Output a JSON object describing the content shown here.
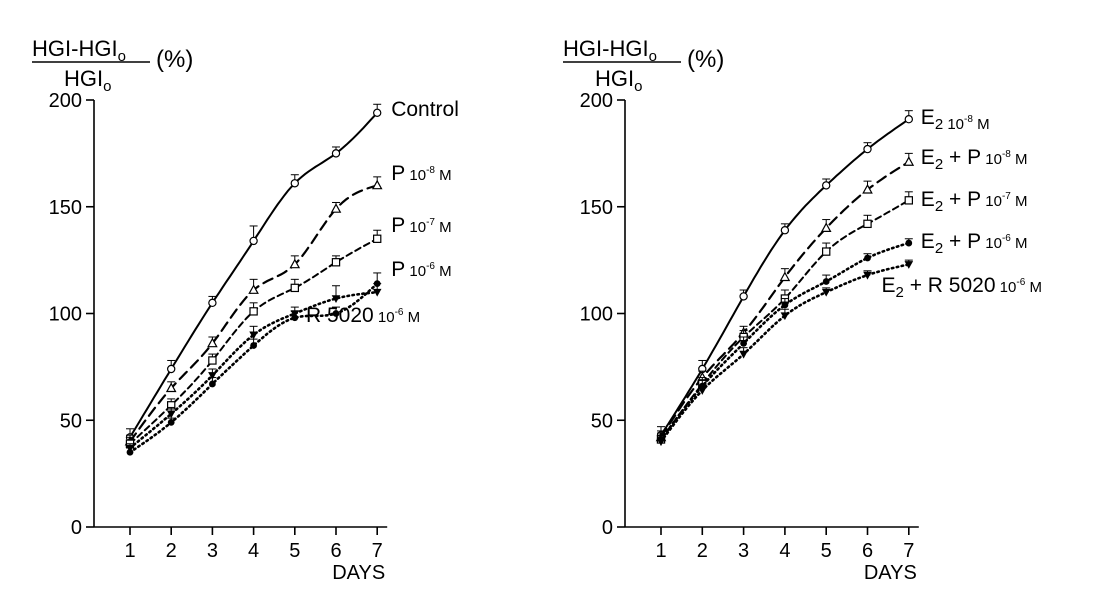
{
  "chart_data": [
    {
      "type": "line",
      "panel": "left",
      "ylabel_numerator": "HGI-HGI",
      "ylabel_denominator": "HGI",
      "ylabel_subscript": "o",
      "ylabel_unit": "(%)",
      "xlabel": "DAYS",
      "x": [
        1,
        2,
        3,
        4,
        5,
        6,
        7
      ],
      "xticks": [
        "1",
        "2",
        "3",
        "4",
        "5",
        "6",
        "7"
      ],
      "ylim": [
        0,
        200
      ],
      "yticks": [
        "0",
        "50",
        "100",
        "150",
        "200"
      ],
      "series": [
        {
          "name": "Control",
          "label_base": "Control",
          "label_exp": "",
          "label_unit": "",
          "marker": "open-circle",
          "line_style": "solid",
          "values": [
            42,
            74,
            105,
            134,
            161,
            175,
            194
          ],
          "errors": [
            4,
            4,
            3,
            7,
            4,
            3,
            4
          ]
        },
        {
          "name": "P 10-8 M",
          "label_base": "P",
          "label_exp": "10",
          "label_exp_sup": "-8",
          "label_unit": "M",
          "marker": "open-triangle",
          "line_style": "dash",
          "values": [
            40,
            65,
            86,
            111,
            123,
            149,
            160
          ],
          "errors": [
            3,
            3,
            3,
            5,
            4,
            3,
            4
          ]
        },
        {
          "name": "P 10-7 M",
          "label_base": "P",
          "label_exp": "10",
          "label_exp_sup": "-7",
          "label_unit": "M",
          "marker": "open-square",
          "line_style": "short-dash",
          "values": [
            39,
            57,
            78,
            101,
            112,
            124,
            135
          ],
          "errors": [
            3,
            3,
            3,
            4,
            4,
            3,
            4
          ]
        },
        {
          "name": "P 10-6 M",
          "label_base": "P",
          "label_exp": "10",
          "label_exp_sup": "-6",
          "label_unit": "M",
          "marker": "filled-circle",
          "line_style": "dot",
          "values": [
            35,
            49,
            67,
            85,
            98,
            100,
            114
          ],
          "errors": [
            2,
            2,
            3,
            3,
            3,
            3,
            5
          ]
        },
        {
          "name": "R 5020 10-6 M",
          "label_base": "R 5020",
          "label_exp": "10",
          "label_exp_sup": "-6",
          "label_unit": "M",
          "marker": "filled-triangle-down",
          "line_style": "dot",
          "values": [
            37,
            53,
            71,
            90,
            100,
            107,
            110
          ],
          "errors": [
            2,
            3,
            3,
            4,
            3,
            6,
            4
          ]
        }
      ]
    },
    {
      "type": "line",
      "panel": "right",
      "ylabel_numerator": "HGI-HGI",
      "ylabel_denominator": "HGI",
      "ylabel_subscript": "o",
      "ylabel_unit": "(%)",
      "xlabel": "DAYS",
      "x": [
        1,
        2,
        3,
        4,
        5,
        6,
        7
      ],
      "xticks": [
        "1",
        "2",
        "3",
        "4",
        "5",
        "6",
        "7"
      ],
      "ylim": [
        0,
        200
      ],
      "yticks": [
        "0",
        "50",
        "100",
        "150",
        "200"
      ],
      "series": [
        {
          "name": "E2 10-8 M",
          "label_base": "E",
          "label_base_sub": "2",
          "label_rest": "",
          "label_exp": "10",
          "label_exp_sup": "-8",
          "label_unit": "M",
          "marker": "open-circle",
          "line_style": "solid",
          "values": [
            43,
            74,
            108,
            139,
            160,
            177,
            191
          ],
          "errors": [
            4,
            4,
            3,
            3,
            3,
            3,
            4
          ]
        },
        {
          "name": "E2 + P 10-8 M",
          "label_base": "E",
          "label_base_sub": "2",
          "label_rest": "+ P",
          "label_exp": "10",
          "label_exp_sup": "-8",
          "label_unit": "M",
          "marker": "open-triangle",
          "line_style": "dash",
          "values": [
            42,
            70,
            91,
            117,
            140,
            158,
            171
          ],
          "errors": [
            3,
            3,
            3,
            4,
            4,
            4,
            4
          ]
        },
        {
          "name": "E2 + P 10-7 M",
          "label_base": "E",
          "label_base_sub": "2",
          "label_rest": "+ P",
          "label_exp": "10",
          "label_exp_sup": "-7",
          "label_unit": "M",
          "marker": "open-square",
          "line_style": "short-dash",
          "values": [
            41,
            67,
            89,
            107,
            129,
            142,
            153
          ],
          "errors": [
            3,
            3,
            3,
            4,
            4,
            4,
            4
          ]
        },
        {
          "name": "E2 + P 10-6 M",
          "label_base": "E",
          "label_base_sub": "2",
          "label_rest": "+ P",
          "label_exp": "10",
          "label_exp_sup": "-6",
          "label_unit": "M",
          "marker": "filled-circle",
          "line_style": "dot",
          "values": [
            41,
            66,
            86,
            104,
            115,
            126,
            133
          ],
          "errors": [
            2,
            3,
            3,
            3,
            3,
            2,
            2
          ]
        },
        {
          "name": "E2 + R 5020 10-6 M",
          "label_base": "E",
          "label_base_sub": "2",
          "label_rest": "+ R 5020",
          "label_exp": "10",
          "label_exp_sup": "-6",
          "label_unit": "M",
          "marker": "filled-triangle-down",
          "line_style": "dot",
          "values": [
            40,
            64,
            81,
            99,
            110,
            118,
            123
          ],
          "errors": [
            2,
            2,
            3,
            3,
            2,
            2,
            2
          ]
        }
      ]
    }
  ]
}
